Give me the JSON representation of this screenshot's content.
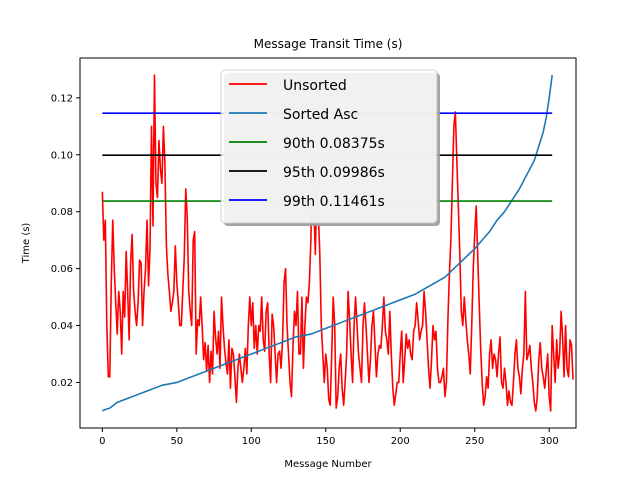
{
  "chart_data": {
    "type": "line",
    "title": "Message Transit Time (s)",
    "xlabel": "Message Number",
    "ylabel": "Time (s)",
    "xlim": [
      -15,
      318
    ],
    "ylim": [
      0.004,
      0.134
    ],
    "xticks": [
      0,
      50,
      100,
      150,
      200,
      250,
      300
    ],
    "yticks": [
      0.02,
      0.04,
      0.06,
      0.08,
      0.1,
      0.12
    ],
    "ytick_labels": [
      "0.02",
      "0.04",
      "0.06",
      "0.08",
      "0.10",
      "0.12"
    ],
    "grid": false,
    "legend_position": "top-center",
    "series": [
      {
        "name": "Unsorted",
        "color": "#ff0000",
        "x_start": 0,
        "x_step": 1,
        "values": [
          0.087,
          0.07,
          0.077,
          0.04,
          0.022,
          0.022,
          0.055,
          0.077,
          0.06,
          0.048,
          0.037,
          0.052,
          0.045,
          0.03,
          0.052,
          0.043,
          0.066,
          0.052,
          0.035,
          0.062,
          0.072,
          0.052,
          0.045,
          0.04,
          0.048,
          0.063,
          0.062,
          0.04,
          0.052,
          0.06,
          0.077,
          0.054,
          0.067,
          0.11,
          0.075,
          0.128,
          0.09,
          0.085,
          0.105,
          0.095,
          0.09,
          0.11,
          0.097,
          0.068,
          0.058,
          0.052,
          0.045,
          0.048,
          0.052,
          0.068,
          0.055,
          0.048,
          0.04,
          0.04,
          0.052,
          0.064,
          0.088,
          0.078,
          0.052,
          0.045,
          0.04,
          0.07,
          0.073,
          0.03,
          0.042,
          0.04,
          0.05,
          0.04,
          0.028,
          0.034,
          0.024,
          0.033,
          0.02,
          0.031,
          0.023,
          0.045,
          0.036,
          0.03,
          0.038,
          0.025,
          0.05,
          0.04,
          0.032,
          0.027,
          0.023,
          0.035,
          0.018,
          0.032,
          0.03,
          0.022,
          0.013,
          0.025,
          0.03,
          0.025,
          0.02,
          0.025,
          0.032,
          0.023,
          0.04,
          0.05,
          0.04,
          0.048,
          0.032,
          0.04,
          0.03,
          0.04,
          0.038,
          0.05,
          0.035,
          0.031,
          0.045,
          0.048,
          0.03,
          0.02,
          0.044,
          0.04,
          0.03,
          0.02,
          0.03,
          0.031,
          0.025,
          0.035,
          0.055,
          0.06,
          0.04,
          0.03,
          0.02,
          0.015,
          0.033,
          0.045,
          0.04,
          0.052,
          0.03,
          0.03,
          0.05,
          0.025,
          0.04,
          0.05,
          0.048,
          0.055,
          0.07,
          0.1,
          0.082,
          0.065,
          0.09,
          0.08,
          0.065,
          0.04,
          0.03,
          0.02,
          0.03,
          0.025,
          0.014,
          0.012,
          0.03,
          0.05,
          0.04,
          0.011,
          0.015,
          0.025,
          0.03,
          0.018,
          0.012,
          0.02,
          0.03,
          0.052,
          0.042,
          0.03,
          0.02,
          0.04,
          0.05,
          0.04,
          0.03,
          0.025,
          0.02,
          0.04,
          0.048,
          0.04,
          0.03,
          0.02,
          0.028,
          0.04,
          0.045,
          0.034,
          0.022,
          0.03,
          0.033,
          0.032,
          0.04,
          0.05,
          0.038,
          0.035,
          0.03,
          0.045,
          0.03,
          0.018,
          0.012,
          0.016,
          0.02,
          0.02,
          0.03,
          0.038,
          0.02,
          0.028,
          0.037,
          0.032,
          0.035,
          0.03,
          0.028,
          0.038,
          0.04,
          0.048,
          0.042,
          0.035,
          0.038,
          0.04,
          0.052,
          0.045,
          0.035,
          0.025,
          0.018,
          0.028,
          0.04,
          0.035,
          0.038,
          0.025,
          0.02,
          0.02,
          0.022,
          0.025,
          0.015,
          0.02,
          0.042,
          0.058,
          0.07,
          0.09,
          0.11,
          0.115,
          0.098,
          0.082,
          0.065,
          0.045,
          0.04,
          0.05,
          0.042,
          0.035,
          0.03,
          0.023,
          0.04,
          0.06,
          0.072,
          0.082,
          0.065,
          0.048,
          0.032,
          0.02,
          0.012,
          0.015,
          0.022,
          0.018,
          0.03,
          0.035,
          0.025,
          0.03,
          0.028,
          0.022,
          0.03,
          0.036,
          0.02,
          0.018,
          0.025,
          0.02,
          0.012,
          0.017,
          0.013,
          0.012,
          0.02,
          0.03,
          0.035,
          0.025,
          0.022,
          0.016,
          0.025,
          0.03,
          0.052,
          0.028,
          0.03,
          0.033,
          0.025,
          0.02,
          0.013,
          0.01,
          0.015,
          0.028,
          0.034,
          0.025,
          0.022,
          0.018,
          0.024,
          0.03,
          0.015,
          0.01,
          0.04,
          0.03,
          0.02,
          0.035,
          0.025,
          0.03,
          0.045,
          0.036,
          0.022,
          0.04,
          0.025,
          0.022,
          0.035,
          0.033,
          0.021
        ]
      },
      {
        "name": "Sorted Asc",
        "color": "#1f77b4",
        "x": [
          0,
          2,
          5,
          10,
          20,
          30,
          40,
          50,
          60,
          70,
          80,
          90,
          100,
          110,
          120,
          130,
          140,
          150,
          160,
          170,
          180,
          190,
          200,
          210,
          220,
          230,
          240,
          250,
          255,
          260,
          265,
          270,
          275,
          280,
          285,
          290,
          293,
          296,
          298,
          300,
          302
        ],
        "values": [
          0.01,
          0.0105,
          0.011,
          0.013,
          0.015,
          0.017,
          0.019,
          0.02,
          0.022,
          0.024,
          0.026,
          0.028,
          0.03,
          0.032,
          0.034,
          0.036,
          0.037,
          0.039,
          0.041,
          0.043,
          0.045,
          0.047,
          0.049,
          0.051,
          0.054,
          0.057,
          0.062,
          0.067,
          0.07,
          0.073,
          0.077,
          0.08,
          0.084,
          0.088,
          0.093,
          0.098,
          0.103,
          0.108,
          0.113,
          0.12,
          0.128
        ]
      },
      {
        "name": "90th 0.08375s",
        "color": "#008000",
        "x_range": [
          0,
          302
        ],
        "value": 0.08375
      },
      {
        "name": "95th 0.09986s",
        "color": "#000000",
        "x_range": [
          0,
          302
        ],
        "value": 0.09986
      },
      {
        "name": "99th 0.11461s",
        "color": "#0000ff",
        "x_range": [
          0,
          302
        ],
        "value": 0.11461
      }
    ]
  }
}
